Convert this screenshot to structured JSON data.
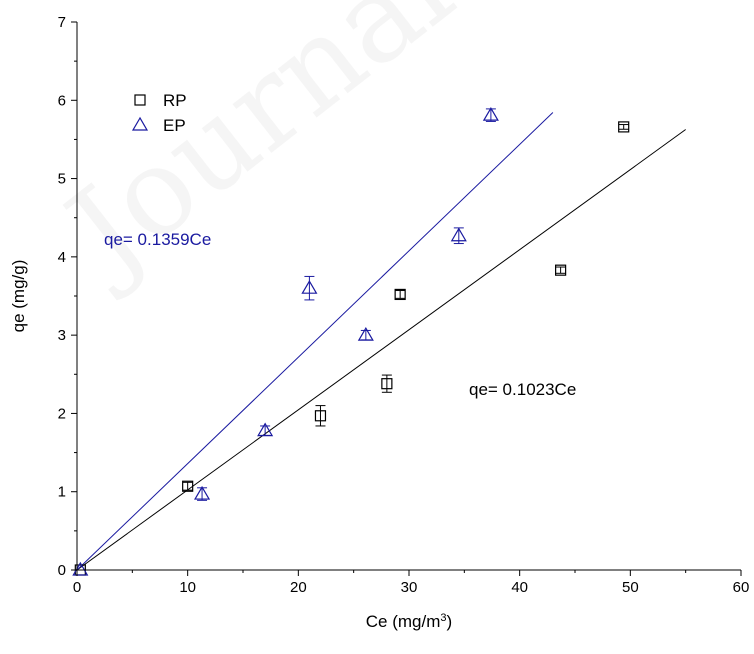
{
  "chart_data": {
    "type": "scatter",
    "xlabel": "Ce (mg/m",
    "xlabel_sup": "3",
    "xlabel_close": ")",
    "ylabel": "qe (mg/g)",
    "xlim": [
      0,
      60
    ],
    "ylim": [
      0,
      7
    ],
    "xticks": [
      0,
      10,
      20,
      30,
      40,
      50,
      60
    ],
    "yticks": [
      0,
      1,
      2,
      3,
      4,
      5,
      6,
      7
    ],
    "grid": false,
    "legend_position": "top-left",
    "series": [
      {
        "name": "RP",
        "marker": "square",
        "color": "#000000",
        "points": [
          {
            "x": 0.3,
            "y": 0.0,
            "err": 0.0
          },
          {
            "x": 10.0,
            "y": 1.07,
            "err": 0.05
          },
          {
            "x": 22.0,
            "y": 1.97,
            "err": 0.13
          },
          {
            "x": 28.0,
            "y": 2.38,
            "err": 0.11
          },
          {
            "x": 29.2,
            "y": 3.52,
            "err": 0.05
          },
          {
            "x": 43.7,
            "y": 3.83,
            "err": 0.04
          },
          {
            "x": 49.4,
            "y": 5.66,
            "err": 0.03
          }
        ],
        "fit": {
          "slope": 0.1023,
          "x_end": 55.0,
          "label": "qe= 0.1023Ce"
        }
      },
      {
        "name": "EP",
        "marker": "triangle",
        "color": "#1a1aa0",
        "points": [
          {
            "x": 0.3,
            "y": 0.0,
            "err": 0.0
          },
          {
            "x": 11.3,
            "y": 0.97,
            "err": 0.08
          },
          {
            "x": 17.0,
            "y": 1.78,
            "err": 0.06
          },
          {
            "x": 21.0,
            "y": 3.6,
            "err": 0.15
          },
          {
            "x": 26.1,
            "y": 3.0,
            "err": 0.06
          },
          {
            "x": 34.5,
            "y": 4.27,
            "err": 0.1
          },
          {
            "x": 37.4,
            "y": 5.81,
            "err": 0.08
          }
        ],
        "fit": {
          "slope": 0.1359,
          "x_end": 43.0,
          "label": "qe= 0.1359Ce"
        }
      }
    ]
  },
  "watermark_text": "Journal"
}
